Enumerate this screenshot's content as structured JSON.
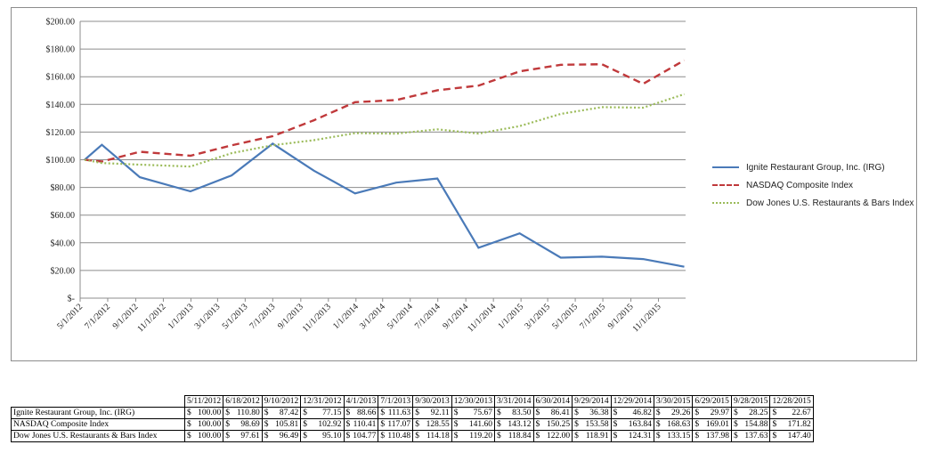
{
  "chart_data": {
    "type": "line",
    "title": "",
    "xlabel": "",
    "ylabel": "",
    "ylim": [
      0,
      200
    ],
    "y_ticks": [
      "$-",
      "$20.00",
      "$40.00",
      "$60.00",
      "$80.00",
      "$100.00",
      "$120.00",
      "$140.00",
      "$160.00",
      "$180.00",
      "$200.00"
    ],
    "grid": "horizontal",
    "legend_position": "right",
    "x_axis_labels": [
      "5/1/2012",
      "7/1/2012",
      "9/1/2012",
      "11/1/2012",
      "1/1/2013",
      "3/1/2013",
      "5/1/2013",
      "7/1/2013",
      "9/1/2013",
      "11/1/2013",
      "1/1/2014",
      "3/1/2014",
      "5/1/2014",
      "7/1/2014",
      "9/1/2014",
      "11/1/2014",
      "1/1/2015",
      "3/1/2015",
      "5/1/2015",
      "7/1/2015",
      "9/1/2015",
      "11/1/2015"
    ],
    "x_range": [
      "2012-05-01",
      "2015-12-31"
    ],
    "x": [
      "2012-05-11",
      "2012-06-18",
      "2012-09-10",
      "2012-12-31",
      "2013-04-01",
      "2013-07-01",
      "2013-09-30",
      "2013-12-30",
      "2014-03-31",
      "2014-06-30",
      "2014-09-29",
      "2014-12-29",
      "2015-03-30",
      "2015-06-29",
      "2015-09-28",
      "2015-12-28"
    ],
    "series": [
      {
        "name": "Ignite Restaurant Group, Inc. (IRG)",
        "color": "#4a7ab8",
        "style": "solid",
        "values": [
          100.0,
          110.8,
          87.42,
          77.15,
          88.66,
          111.63,
          92.11,
          75.67,
          83.5,
          86.41,
          36.38,
          46.82,
          29.26,
          29.97,
          28.25,
          22.67
        ]
      },
      {
        "name": "NASDAQ Composite Index",
        "color": "#c0393b",
        "style": "dashed",
        "values": [
          100.0,
          98.69,
          105.81,
          102.92,
          110.41,
          117.07,
          128.55,
          141.6,
          143.12,
          150.25,
          153.58,
          163.84,
          168.63,
          169.01,
          154.88,
          171.82
        ]
      },
      {
        "name": "Dow Jones U.S. Restaurants & Bars Index",
        "color": "#9bbb59",
        "style": "dotted",
        "values": [
          100.0,
          97.61,
          96.49,
          95.1,
          104.77,
          110.48,
          114.18,
          119.2,
          118.84,
          122.0,
          118.91,
          124.31,
          133.15,
          137.98,
          137.63,
          147.4
        ]
      }
    ]
  },
  "table": {
    "headers": [
      "5/11/2012",
      "6/18/2012",
      "9/10/2012",
      "12/31/2012",
      "4/1/2013",
      "7/1/2013",
      "9/30/2013",
      "12/30/2013",
      "3/31/2014",
      "6/30/2014",
      "9/29/2014",
      "12/29/2014",
      "3/30/2015",
      "6/29/2015",
      "9/28/2015",
      "12/28/2015"
    ],
    "currency": "$",
    "rows": [
      {
        "name": "Ignite Restaurant Group, Inc. (IRG)",
        "values": [
          "100.00",
          "110.80",
          "87.42",
          "77.15",
          "88.66",
          "111.63",
          "92.11",
          "75.67",
          "83.50",
          "86.41",
          "36.38",
          "46.82",
          "29.26",
          "29.97",
          "28.25",
          "22.67"
        ]
      },
      {
        "name": "NASDAQ Composite Index",
        "values": [
          "100.00",
          "98.69",
          "105.81",
          "102.92",
          "110.41",
          "117.07",
          "128.55",
          "141.60",
          "143.12",
          "150.25",
          "153.58",
          "163.84",
          "168.63",
          "169.01",
          "154.88",
          "171.82"
        ]
      },
      {
        "name": "Dow Jones U.S. Restaurants & Bars Index",
        "values": [
          "100.00",
          "97.61",
          "96.49",
          "95.10",
          "104.77",
          "110.48",
          "114.18",
          "119.20",
          "118.84",
          "122.00",
          "118.91",
          "124.31",
          "133.15",
          "137.98",
          "137.63",
          "147.40"
        ]
      }
    ]
  }
}
